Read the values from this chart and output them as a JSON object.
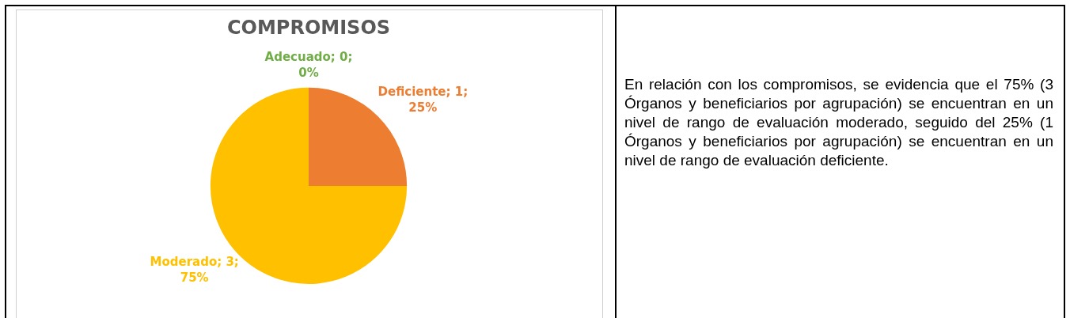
{
  "chart_data": {
    "type": "pie",
    "title": "COMPROMISOS",
    "categories": [
      "Adecuado",
      "Deficiente",
      "Moderado"
    ],
    "values": [
      0,
      1,
      3
    ],
    "colors": [
      "#70ad47",
      "#ed7d31",
      "#ffc000"
    ],
    "value_labels": [
      "; 0; 0%",
      "; 1; 25%",
      "; 3; 75%"
    ],
    "legend": false,
    "annotations": [
      "En relación con los compromisos, se evidencia que el 75% (3 Órganos y beneficiarios por agrupación) se encuentran en un nivel de rango de evaluación moderado, seguido del 25% (1 Órganos y beneficiarios por agrupación) se encuentran en un nivel de rango de evaluación deficiente."
    ]
  }
}
